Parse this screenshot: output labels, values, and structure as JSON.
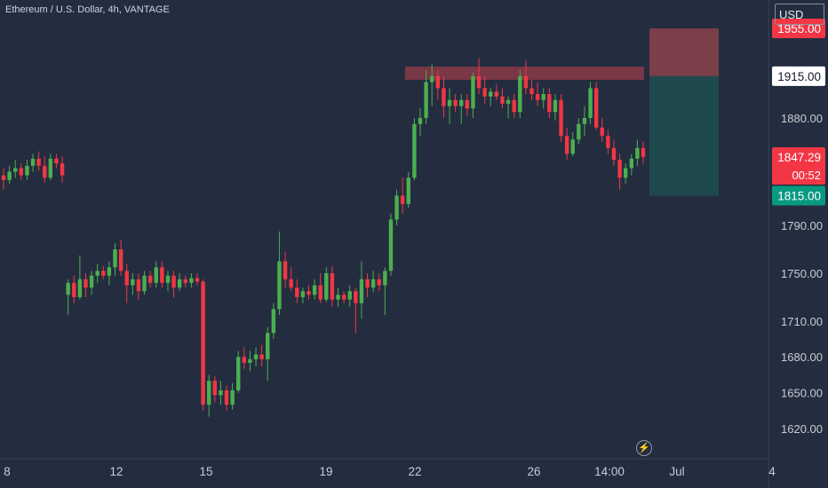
{
  "header": {
    "symbol_title": "Ethereum / U.S. Dollar, 4h, VANTAGE",
    "currency": "USD"
  },
  "price_axis": {
    "ticks": [
      "1880.00",
      "1790.00",
      "1750.00",
      "1710.00",
      "1680.00",
      "1650.00",
      "1620.00"
    ],
    "tick_values": [
      1880,
      1790,
      1750,
      1710,
      1680,
      1650,
      1620
    ]
  },
  "labels": {
    "stop": {
      "text": "1955.00",
      "value": 1955,
      "color": "#f23645"
    },
    "entry": {
      "text": "1915.00",
      "value": 1915,
      "color": "#ffffff"
    },
    "current": {
      "text": "1847.29",
      "value": 1847.29,
      "timer": "00:52",
      "color": "#f23645"
    },
    "target": {
      "text": "1815.00",
      "value": 1815,
      "color": "#089981"
    }
  },
  "time_axis": {
    "ticks": [
      "8",
      "12",
      "15",
      "19",
      "22",
      "26",
      "14:00",
      "Jul",
      "4"
    ]
  },
  "icons": {
    "bolt": "lightning-icon"
  },
  "colors": {
    "background": "#232d3f",
    "up": "#4caf50",
    "down": "#f23645",
    "resistance": "#8a3a48",
    "stop_zone": "#7a3f48",
    "target_zone": "#1f4a4d"
  },
  "chart_data": {
    "type": "candlestick",
    "title": "Ethereum / U.S. Dollar, 4h, VANTAGE",
    "ylim": [
      1600,
      1980
    ],
    "x_tick_labels": [
      "8",
      "12",
      "15",
      "19",
      "22",
      "26",
      "14:00",
      "Jul",
      "4"
    ],
    "annotations": {
      "resistance_zone": [
        1915,
        1920
      ],
      "short_position": {
        "entry": 1915,
        "stop": 1955,
        "target": 1815
      }
    },
    "candles": [
      {
        "o": 1832,
        "h": 1838,
        "l": 1820,
        "c": 1828
      },
      {
        "o": 1828,
        "h": 1840,
        "l": 1825,
        "c": 1835
      },
      {
        "o": 1835,
        "h": 1845,
        "l": 1830,
        "c": 1838
      },
      {
        "o": 1838,
        "h": 1842,
        "l": 1828,
        "c": 1832
      },
      {
        "o": 1832,
        "h": 1845,
        "l": 1828,
        "c": 1840
      },
      {
        "o": 1840,
        "h": 1850,
        "l": 1835,
        "c": 1846
      },
      {
        "o": 1846,
        "h": 1852,
        "l": 1836,
        "c": 1840
      },
      {
        "o": 1840,
        "h": 1848,
        "l": 1826,
        "c": 1830
      },
      {
        "o": 1830,
        "h": 1850,
        "l": 1828,
        "c": 1846
      },
      {
        "o": 1846,
        "h": 1850,
        "l": 1838,
        "c": 1842
      },
      {
        "o": 1842,
        "h": 1848,
        "l": 1826,
        "c": 1832
      },
      {
        "o": 1732,
        "h": 1745,
        "l": 1715,
        "c": 1742
      },
      {
        "o": 1742,
        "h": 1748,
        "l": 1725,
        "c": 1730
      },
      {
        "o": 1730,
        "h": 1765,
        "l": 1728,
        "c": 1745
      },
      {
        "o": 1745,
        "h": 1750,
        "l": 1730,
        "c": 1738
      },
      {
        "o": 1738,
        "h": 1752,
        "l": 1732,
        "c": 1748
      },
      {
        "o": 1748,
        "h": 1758,
        "l": 1742,
        "c": 1752
      },
      {
        "o": 1752,
        "h": 1756,
        "l": 1745,
        "c": 1748
      },
      {
        "o": 1748,
        "h": 1760,
        "l": 1740,
        "c": 1755
      },
      {
        "o": 1755,
        "h": 1775,
        "l": 1748,
        "c": 1770
      },
      {
        "o": 1770,
        "h": 1778,
        "l": 1748,
        "c": 1752
      },
      {
        "o": 1752,
        "h": 1758,
        "l": 1725,
        "c": 1740
      },
      {
        "o": 1740,
        "h": 1750,
        "l": 1732,
        "c": 1745
      },
      {
        "o": 1745,
        "h": 1750,
        "l": 1728,
        "c": 1735
      },
      {
        "o": 1735,
        "h": 1752,
        "l": 1732,
        "c": 1748
      },
      {
        "o": 1748,
        "h": 1752,
        "l": 1738,
        "c": 1742
      },
      {
        "o": 1742,
        "h": 1760,
        "l": 1738,
        "c": 1755
      },
      {
        "o": 1755,
        "h": 1760,
        "l": 1738,
        "c": 1742
      },
      {
        "o": 1742,
        "h": 1752,
        "l": 1735,
        "c": 1748
      },
      {
        "o": 1748,
        "h": 1752,
        "l": 1730,
        "c": 1738
      },
      {
        "o": 1738,
        "h": 1750,
        "l": 1735,
        "c": 1745
      },
      {
        "o": 1745,
        "h": 1748,
        "l": 1738,
        "c": 1742
      },
      {
        "o": 1742,
        "h": 1750,
        "l": 1738,
        "c": 1746
      },
      {
        "o": 1746,
        "h": 1750,
        "l": 1740,
        "c": 1743
      },
      {
        "o": 1743,
        "h": 1745,
        "l": 1635,
        "c": 1640
      },
      {
        "o": 1640,
        "h": 1665,
        "l": 1630,
        "c": 1660
      },
      {
        "o": 1660,
        "h": 1664,
        "l": 1642,
        "c": 1648
      },
      {
        "o": 1648,
        "h": 1660,
        "l": 1640,
        "c": 1652
      },
      {
        "o": 1652,
        "h": 1656,
        "l": 1635,
        "c": 1640
      },
      {
        "o": 1640,
        "h": 1658,
        "l": 1636,
        "c": 1652
      },
      {
        "o": 1652,
        "h": 1685,
        "l": 1650,
        "c": 1680
      },
      {
        "o": 1680,
        "h": 1688,
        "l": 1670,
        "c": 1675
      },
      {
        "o": 1675,
        "h": 1685,
        "l": 1668,
        "c": 1678
      },
      {
        "o": 1678,
        "h": 1688,
        "l": 1672,
        "c": 1682
      },
      {
        "o": 1682,
        "h": 1690,
        "l": 1672,
        "c": 1678
      },
      {
        "o": 1678,
        "h": 1705,
        "l": 1660,
        "c": 1700
      },
      {
        "o": 1700,
        "h": 1725,
        "l": 1695,
        "c": 1720
      },
      {
        "o": 1720,
        "h": 1785,
        "l": 1715,
        "c": 1760
      },
      {
        "o": 1760,
        "h": 1768,
        "l": 1738,
        "c": 1745
      },
      {
        "o": 1745,
        "h": 1755,
        "l": 1735,
        "c": 1738
      },
      {
        "o": 1738,
        "h": 1745,
        "l": 1725,
        "c": 1730
      },
      {
        "o": 1730,
        "h": 1738,
        "l": 1725,
        "c": 1735
      },
      {
        "o": 1735,
        "h": 1740,
        "l": 1728,
        "c": 1732
      },
      {
        "o": 1732,
        "h": 1745,
        "l": 1728,
        "c": 1740
      },
      {
        "o": 1740,
        "h": 1750,
        "l": 1725,
        "c": 1728
      },
      {
        "o": 1728,
        "h": 1755,
        "l": 1726,
        "c": 1750
      },
      {
        "o": 1750,
        "h": 1756,
        "l": 1722,
        "c": 1728
      },
      {
        "o": 1728,
        "h": 1738,
        "l": 1722,
        "c": 1732
      },
      {
        "o": 1732,
        "h": 1735,
        "l": 1725,
        "c": 1728
      },
      {
        "o": 1728,
        "h": 1740,
        "l": 1722,
        "c": 1735
      },
      {
        "o": 1735,
        "h": 1738,
        "l": 1700,
        "c": 1725
      },
      {
        "o": 1725,
        "h": 1760,
        "l": 1712,
        "c": 1745
      },
      {
        "o": 1745,
        "h": 1750,
        "l": 1730,
        "c": 1738
      },
      {
        "o": 1738,
        "h": 1752,
        "l": 1734,
        "c": 1745
      },
      {
        "o": 1745,
        "h": 1750,
        "l": 1735,
        "c": 1740
      },
      {
        "o": 1740,
        "h": 1755,
        "l": 1715,
        "c": 1752
      },
      {
        "o": 1752,
        "h": 1800,
        "l": 1748,
        "c": 1795
      },
      {
        "o": 1795,
        "h": 1820,
        "l": 1790,
        "c": 1815
      },
      {
        "o": 1815,
        "h": 1830,
        "l": 1800,
        "c": 1808
      },
      {
        "o": 1808,
        "h": 1835,
        "l": 1805,
        "c": 1830
      },
      {
        "o": 1830,
        "h": 1880,
        "l": 1828,
        "c": 1875
      },
      {
        "o": 1875,
        "h": 1888,
        "l": 1865,
        "c": 1880
      },
      {
        "o": 1880,
        "h": 1920,
        "l": 1875,
        "c": 1910
      },
      {
        "o": 1910,
        "h": 1925,
        "l": 1890,
        "c": 1915
      },
      {
        "o": 1915,
        "h": 1920,
        "l": 1895,
        "c": 1905
      },
      {
        "o": 1905,
        "h": 1915,
        "l": 1880,
        "c": 1890
      },
      {
        "o": 1890,
        "h": 1905,
        "l": 1875,
        "c": 1895
      },
      {
        "o": 1895,
        "h": 1900,
        "l": 1885,
        "c": 1890
      },
      {
        "o": 1890,
        "h": 1900,
        "l": 1875,
        "c": 1895
      },
      {
        "o": 1895,
        "h": 1900,
        "l": 1882,
        "c": 1888
      },
      {
        "o": 1888,
        "h": 1918,
        "l": 1880,
        "c": 1915
      },
      {
        "o": 1915,
        "h": 1930,
        "l": 1900,
        "c": 1905
      },
      {
        "o": 1905,
        "h": 1915,
        "l": 1892,
        "c": 1898
      },
      {
        "o": 1898,
        "h": 1905,
        "l": 1890,
        "c": 1902
      },
      {
        "o": 1902,
        "h": 1908,
        "l": 1895,
        "c": 1898
      },
      {
        "o": 1898,
        "h": 1905,
        "l": 1888,
        "c": 1892
      },
      {
        "o": 1892,
        "h": 1898,
        "l": 1880,
        "c": 1895
      },
      {
        "o": 1895,
        "h": 1900,
        "l": 1880,
        "c": 1885
      },
      {
        "o": 1885,
        "h": 1920,
        "l": 1880,
        "c": 1915
      },
      {
        "o": 1915,
        "h": 1928,
        "l": 1900,
        "c": 1905
      },
      {
        "o": 1905,
        "h": 1912,
        "l": 1895,
        "c": 1900
      },
      {
        "o": 1900,
        "h": 1910,
        "l": 1890,
        "c": 1895
      },
      {
        "o": 1895,
        "h": 1905,
        "l": 1888,
        "c": 1900
      },
      {
        "o": 1900,
        "h": 1905,
        "l": 1880,
        "c": 1885
      },
      {
        "o": 1885,
        "h": 1900,
        "l": 1878,
        "c": 1895
      },
      {
        "o": 1895,
        "h": 1900,
        "l": 1860,
        "c": 1865
      },
      {
        "o": 1865,
        "h": 1872,
        "l": 1845,
        "c": 1850
      },
      {
        "o": 1850,
        "h": 1868,
        "l": 1848,
        "c": 1862
      },
      {
        "o": 1862,
        "h": 1880,
        "l": 1858,
        "c": 1875
      },
      {
        "o": 1875,
        "h": 1890,
        "l": 1865,
        "c": 1880
      },
      {
        "o": 1880,
        "h": 1910,
        "l": 1875,
        "c": 1905
      },
      {
        "o": 1905,
        "h": 1910,
        "l": 1870,
        "c": 1872
      },
      {
        "o": 1872,
        "h": 1880,
        "l": 1860,
        "c": 1865
      },
      {
        "o": 1865,
        "h": 1870,
        "l": 1850,
        "c": 1855
      },
      {
        "o": 1855,
        "h": 1862,
        "l": 1840,
        "c": 1845
      },
      {
        "o": 1845,
        "h": 1850,
        "l": 1820,
        "c": 1830
      },
      {
        "o": 1830,
        "h": 1842,
        "l": 1825,
        "c": 1838
      },
      {
        "o": 1838,
        "h": 1850,
        "l": 1832,
        "c": 1846
      },
      {
        "o": 1846,
        "h": 1862,
        "l": 1840,
        "c": 1855
      },
      {
        "o": 1855,
        "h": 1860,
        "l": 1842,
        "c": 1847.29
      }
    ]
  }
}
